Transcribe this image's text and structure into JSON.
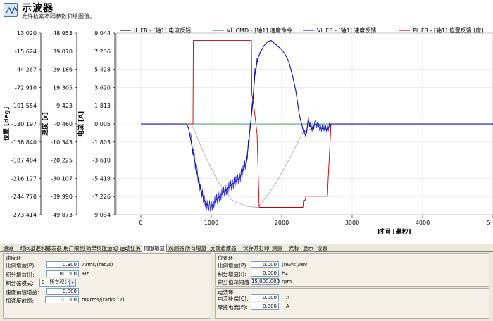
{
  "header": {
    "title": "示波器",
    "subtitle": "允许检索不同参数和绘图值。"
  },
  "axes": {
    "pos": {
      "label": "位置 [deg]",
      "ticks": [
        "13.020",
        "-15.624",
        "-44.267",
        "-72.910",
        "-101.554",
        "-130.197",
        "-158.840",
        "-187.484",
        "-216.127",
        "-244.770",
        "-273.414"
      ]
    },
    "vel": {
      "label": "速度 [r]",
      "ticks": [
        "48.953",
        "39.070",
        "29.186",
        "19.305",
        "9.423",
        "-0.460",
        "-10.343",
        "-20.225",
        "-30.107",
        "-39.990",
        "-49.873"
      ]
    },
    "cur": {
      "label": "电流 [A]",
      "ticks": [
        "9.044",
        "7.236",
        "5.428",
        "3.620",
        "1.813",
        "0.005",
        "-1.803",
        "-3.610",
        "-5.418",
        "-7.226",
        "-9.034"
      ]
    },
    "x": {
      "label": "时间 [毫秒]",
      "ticks": [
        "0",
        "1000",
        "2000",
        "3000",
        "4000",
        "5"
      ]
    }
  },
  "legend": [
    {
      "label": "IL FB - [轴1] 电流反馈",
      "color": "#000080"
    },
    {
      "label": "VL CMD - [轴1] 速度命令",
      "color": "#2e8b57"
    },
    {
      "label": "VL FB - [轴1] 速度反馈",
      "color": "#1f1fc8"
    },
    {
      "label": "PL FB - [轴1] 位置反馈 [度]",
      "color": "#c00000"
    }
  ],
  "chart_data": {
    "type": "line",
    "xlabel": "时间 [毫秒]",
    "xlim": [
      -350,
      5000
    ],
    "ylabel": "电流 [A]",
    "ylim": [
      -9.034,
      9.044
    ],
    "series": [
      {
        "name": "IL FB - [轴1] 电流反馈",
        "x": [
          0,
          650,
          680,
          720,
          760,
          800,
          850,
          900,
          950,
          1000,
          1100,
          1200,
          1300,
          1400,
          1500,
          1550,
          1580,
          1620,
          1660,
          1700,
          1750,
          1800,
          1850,
          1900,
          1950,
          2000,
          2050,
          2100,
          2150,
          2200,
          2250,
          2300,
          2340,
          2380,
          2420,
          2480,
          2550,
          2600,
          2650,
          2700,
          5000
        ],
        "y": [
          0,
          0,
          -0.5,
          -2,
          -3.5,
          -5,
          -6.5,
          -7.6,
          -8.1,
          -8.2,
          -7.3,
          -6.6,
          -6,
          -5.4,
          -3.8,
          -0.5,
          1.5,
          5,
          6.5,
          7.2,
          7.8,
          8.2,
          8.3,
          8,
          7.7,
          7.4,
          6.9,
          6.2,
          4.9,
          3.3,
          0.9,
          -0.5,
          -1.2,
          0.3,
          -0.5,
          0,
          -0.4,
          -0.5,
          -0.5,
          0,
          0
        ]
      },
      {
        "name": "VL CMD - [轴1] 速度命令",
        "x": [
          0,
          5000
        ],
        "y": [
          0,
          0
        ]
      },
      {
        "name": "VL FB - [轴1] 速度反馈",
        "x": [
          0,
          720,
          900,
          1100,
          1300,
          1500,
          1650,
          1700,
          1900,
          2100,
          2300,
          2600,
          5000
        ],
        "y": [
          0,
          0,
          -3,
          -5.8,
          -7.6,
          -8.2,
          -8.3,
          -8.0,
          -6.1,
          -3.6,
          -0.8,
          0,
          0
        ]
      },
      {
        "name": "PL FB - [轴1] 位置反馈 [度]",
        "x": [
          0,
          740,
          745,
          1570,
          1575,
          1600,
          1650,
          1680,
          1690,
          2300,
          2310,
          2330,
          2340,
          2350,
          2600,
          2650,
          2660,
          2700,
          5000
        ],
        "y": [
          0,
          0,
          8.3,
          8.3,
          3,
          2,
          -1,
          -8.3,
          -8.3,
          -8.3,
          -7.6,
          -7.6,
          -7.3,
          -7.2,
          -7.2,
          -7.2,
          -5.4,
          0,
          0
        ]
      }
    ]
  },
  "tabs": [
    "通道",
    "时间基准和触发器",
    "用户限制",
    "简单伺服运动",
    "运动任务",
    "伺服增益",
    "观测器",
    "所有增益",
    "反馈滤波器",
    "保存并打印",
    "测量",
    "光标",
    "显示",
    "设置"
  ],
  "active_tab": "伺服增益",
  "vel_loop": {
    "title": "速度环",
    "rows": [
      {
        "label": "比例增益(P):",
        "value": "0.300",
        "unit": "Arms/(rad/s)"
      },
      {
        "label": "积分增益(I):",
        "value": "80.000",
        "unit": "Hz"
      },
      {
        "label": "积分器模式:",
        "value": "0 - 所有积分",
        "unit": ""
      },
      {
        "label": "速度前馈增益:",
        "value": "0.000",
        "unit": ""
      },
      {
        "label": "加速度前馈:",
        "value": "10.000",
        "unit": "mArms/(rad/s^2)"
      }
    ]
  },
  "pos_loop": {
    "title": "位置环",
    "rows": [
      {
        "label": "比例增益(P):",
        "value": "0.000",
        "unit": "(rev/s)/rev"
      },
      {
        "label": "积分增益(I):",
        "value": "0.000",
        "unit": "Hz"
      },
      {
        "label": "积分饱和阈值:",
        "value": "15.000.000",
        "unit": "rpm"
      }
    ]
  },
  "cur_loop": {
    "title": "电流环",
    "rows": [
      {
        "label": "电流补偿(C):",
        "value": "0.000",
        "unit": "A"
      },
      {
        "label": "摩擦电流(F):",
        "value": "0.000",
        "unit": "A"
      }
    ]
  }
}
